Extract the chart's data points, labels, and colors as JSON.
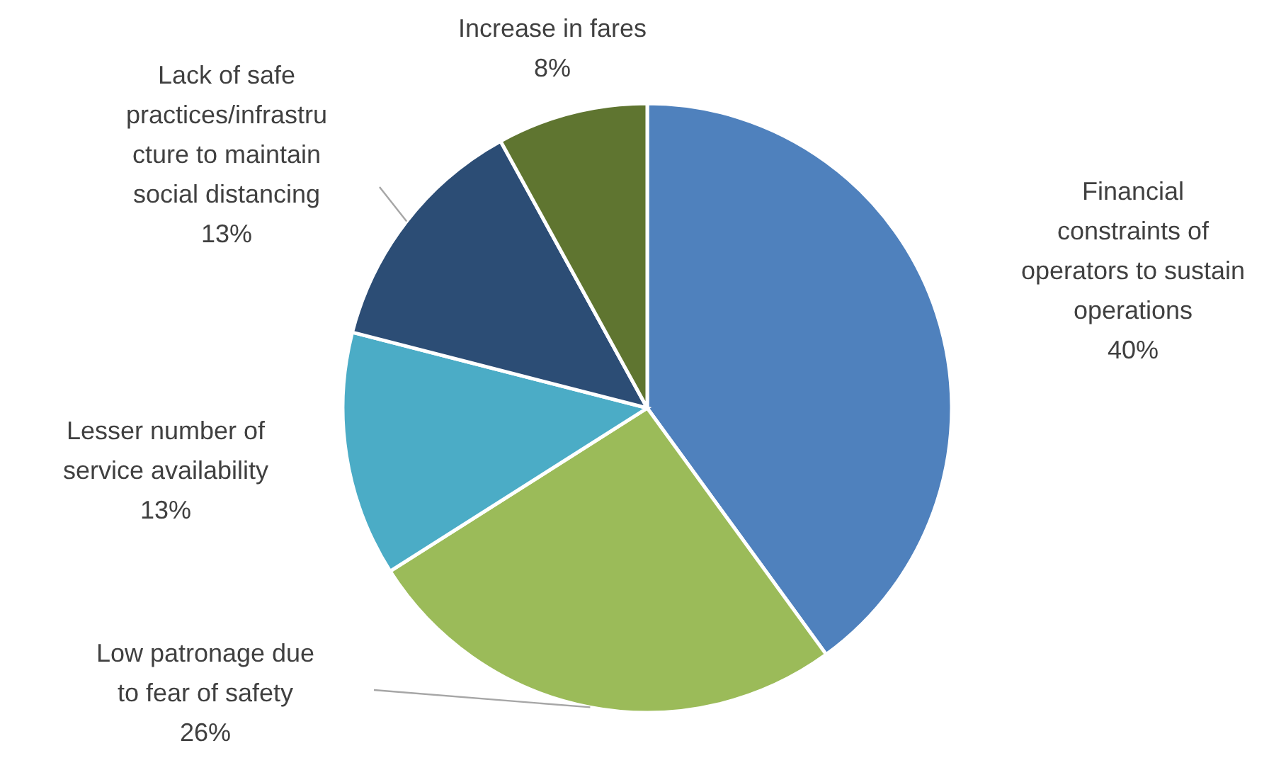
{
  "chart_data": {
    "type": "pie",
    "categories": [
      "Financial\nconstraints of\noperators to sustain\noperations",
      "Low patronage due\nto fear of safety",
      "Lesser number of\nservice availability",
      "Lack of safe\npractices/infrastru\ncture to maintain\nsocial distancing",
      "Increase in fares"
    ],
    "values": [
      40,
      26,
      13,
      13,
      8
    ],
    "colors": [
      "#4f81bd",
      "#9bbb59",
      "#4bacc6",
      "#2c4d75",
      "#5f7530"
    ],
    "value_labels": [
      "40%",
      "26%",
      "13%",
      "13%",
      "8%"
    ]
  }
}
